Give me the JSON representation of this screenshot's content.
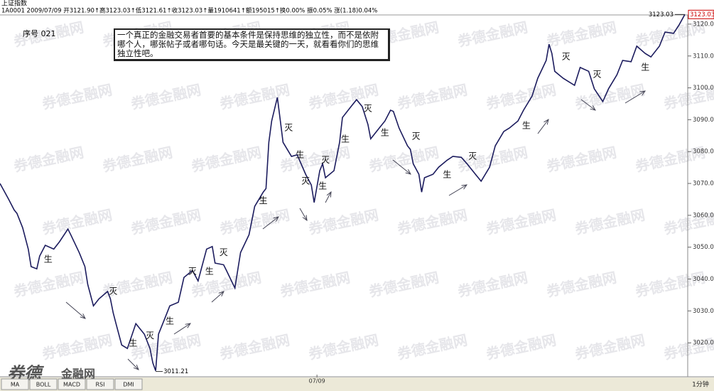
{
  "chart_data": {
    "type": "line",
    "title": "上证指数",
    "subtitle": "1A0001 2009/07/09 开3121.90↑高3123.03↑低3121.61↑收3123.03↑量1910641↑额195015↑换0.00% 振0.05% 涨(1.18)0.04%",
    "serial": "序号 021",
    "note": "一个真正的金融交易者首要的基本条件是保持思维的独立性，而不是依附哪个人，哪张帖子或者哪句话。今天是最关键的一天，就看看你们的思维独立性吧。",
    "watermark": "券德金融网",
    "logo": {
      "brand": "券德",
      "site": "金融网"
    },
    "tabs": [
      "MA",
      "BOLL",
      "MACD",
      "RSI",
      "DMI"
    ],
    "period": "1分钟",
    "color": "#1c1c5e",
    "x": [
      0,
      3,
      5,
      6,
      8,
      10,
      11,
      13,
      14,
      16,
      19,
      21,
      24,
      25,
      28,
      30,
      31,
      33,
      35,
      38,
      39,
      40,
      41,
      43,
      45,
      48,
      50,
      51,
      53,
      54,
      55,
      56,
      58,
      60,
      63,
      65,
      68,
      70,
      73,
      75,
      76,
      79,
      80,
      83,
      85,
      88,
      90,
      93,
      94,
      95,
      96,
      98,
      99,
      100,
      103,
      105,
      108,
      110,
      111,
      113,
      114,
      115,
      118,
      120,
      121,
      124,
      126,
      128,
      130,
      131,
      134,
      136,
      138,
      139,
      141,
      144,
      145,
      146,
      148,
      149,
      150,
      153,
      155,
      158,
      160,
      163,
      165,
      168,
      170,
      173,
      175,
      178,
      180,
      183,
      185,
      188,
      190,
      193,
      194,
      195,
      196,
      199,
      201,
      203,
      205,
      208,
      210,
      213,
      215,
      218,
      220,
      223,
      225,
      228,
      230,
      233,
      235,
      238,
      240,
      242
    ],
    "values": [
      3070.0,
      3065.1,
      3061.7,
      3060.6,
      3056.1,
      3049.4,
      3043.9,
      3043.2,
      3047.2,
      3050.6,
      3049.4,
      3051.7,
      3055.7,
      3053.9,
      3048.3,
      3043.9,
      3038.3,
      3031.6,
      3033.8,
      3036.1,
      3033.8,
      3029.4,
      3026.0,
      3019.3,
      3018.2,
      3026.0,
      3023.8,
      3022.7,
      3018.2,
      3013.7,
      3011.21,
      3022.7,
      3027.1,
      3031.6,
      3032.7,
      3040.5,
      3042.7,
      3039.4,
      3049.4,
      3050.2,
      3045.0,
      3044.5,
      3042.7,
      3037.2,
      3048.3,
      3053.9,
      3062.8,
      3067.3,
      3068.4,
      3082.9,
      3089.6,
      3097.0,
      3090.0,
      3082.9,
      3078.5,
      3079.0,
      3072.9,
      3069.5,
      3064.0,
      3074.0,
      3076.2,
      3071.8,
      3074.0,
      3082.9,
      3090.7,
      3094.1,
      3096.3,
      3094.1,
      3088.5,
      3084.0,
      3087.4,
      3089.6,
      3093.0,
      3092.6,
      3087.4,
      3081.8,
      3080.7,
      3076.2,
      3072.9,
      3067.3,
      3071.8,
      3072.9,
      3075.1,
      3077.3,
      3078.5,
      3078.2,
      3076.2,
      3072.9,
      3070.7,
      3075.1,
      3081.8,
      3086.3,
      3087.4,
      3089.6,
      3093.0,
      3097.4,
      3103.0,
      3108.6,
      3113.7,
      3110.8,
      3105.2,
      3103.0,
      3101.9,
      3100.8,
      3106.4,
      3105.2,
      3099.7,
      3095.7,
      3099.7,
      3104.1,
      3108.6,
      3108.2,
      3113.1,
      3110.8,
      3109.7,
      3113.1,
      3117.5,
      3117.1,
      3119.8,
      3123.03
    ],
    "value_labels": [
      null,
      null,
      null,
      null,
      null,
      null,
      null,
      null,
      null,
      null,
      null,
      null,
      null,
      null,
      null,
      null,
      null,
      null,
      null,
      null,
      null,
      null,
      null,
      null,
      null,
      null,
      null,
      null,
      null,
      null,
      "3011.21",
      null,
      null,
      null,
      null,
      null,
      null,
      null,
      null,
      null,
      null,
      null,
      null,
      null,
      null,
      null,
      null,
      null,
      null,
      null,
      null,
      null,
      null,
      null,
      null,
      null,
      null,
      null,
      null,
      null,
      null,
      null,
      null,
      null,
      null,
      null,
      null,
      null,
      null,
      null,
      null,
      null,
      null,
      null,
      null,
      null,
      null,
      null,
      null,
      null,
      null,
      null,
      null,
      null,
      null,
      null,
      null,
      null,
      null,
      null,
      null,
      null,
      null,
      null,
      null,
      null,
      null,
      null,
      null,
      null,
      null,
      null,
      null,
      null,
      null,
      null,
      null,
      null,
      null,
      null,
      null,
      null,
      null,
      null,
      null,
      null,
      null,
      null,
      null,
      "3123.03"
    ],
    "xlim": [
      0,
      242.5
    ],
    "xticks": [
      {
        "value": 112,
        "label": "07/09"
      }
    ],
    "ylim": [
      3010,
      3124
    ],
    "yticks": [
      {
        "value": 3020,
        "label": "3020.0"
      },
      {
        "value": 3030,
        "label": "3030.0"
      },
      {
        "value": 3040,
        "label": "3040.0"
      },
      {
        "value": 3050,
        "label": "3050.0"
      },
      {
        "value": 3060,
        "label": "3060.0"
      },
      {
        "value": 3070,
        "label": "3070.0"
      },
      {
        "value": 3080,
        "label": "3080.0"
      },
      {
        "value": 3090,
        "label": "3090.0"
      },
      {
        "value": 3100,
        "label": "3100.0"
      },
      {
        "value": 3110,
        "label": "3110.0"
      },
      {
        "value": 3120,
        "label": "3120.0"
      }
    ],
    "grid": false,
    "annotations": [
      {
        "text": "生",
        "x": 17,
        "y": 3046.1
      },
      {
        "text": "灭",
        "x": 40,
        "y": 3036.1
      },
      {
        "text": "生",
        "x": 47,
        "y": 3019.8
      },
      {
        "text": "灭",
        "x": 53,
        "y": 3022.2
      },
      {
        "text": "生",
        "x": 60,
        "y": 3026.7
      },
      {
        "text": "灭",
        "x": 68,
        "y": 3042.3
      },
      {
        "text": "生",
        "x": 74,
        "y": 3042.3
      },
      {
        "text": "灭",
        "x": 79,
        "y": 3048.3
      },
      {
        "text": "生",
        "x": 93,
        "y": 3064.6
      },
      {
        "text": "灭",
        "x": 102,
        "y": 3087.4
      },
      {
        "text": "生",
        "x": 106,
        "y": 3078.9
      },
      {
        "text": "灭",
        "x": 108,
        "y": 3070.7
      },
      {
        "text": "灭",
        "x": 115,
        "y": 3077.3
      },
      {
        "text": "生",
        "x": 114,
        "y": 3069.1
      },
      {
        "text": "生",
        "x": 122,
        "y": 3083.8
      },
      {
        "text": "灭",
        "x": 130,
        "y": 3093.4
      },
      {
        "text": "生",
        "x": 136,
        "y": 3085.8
      },
      {
        "text": "灭",
        "x": 147,
        "y": 3084.7
      },
      {
        "text": "生",
        "x": 158,
        "y": 3072.7
      },
      {
        "text": "灭",
        "x": 167,
        "y": 3078.5
      },
      {
        "text": "生",
        "x": 186,
        "y": 3088.1
      },
      {
        "text": "灭",
        "x": 200,
        "y": 3109.7
      },
      {
        "text": "灭",
        "x": 211,
        "y": 3104.1
      },
      {
        "text": "生",
        "x": 228,
        "y": 3106.4
      }
    ]
  }
}
